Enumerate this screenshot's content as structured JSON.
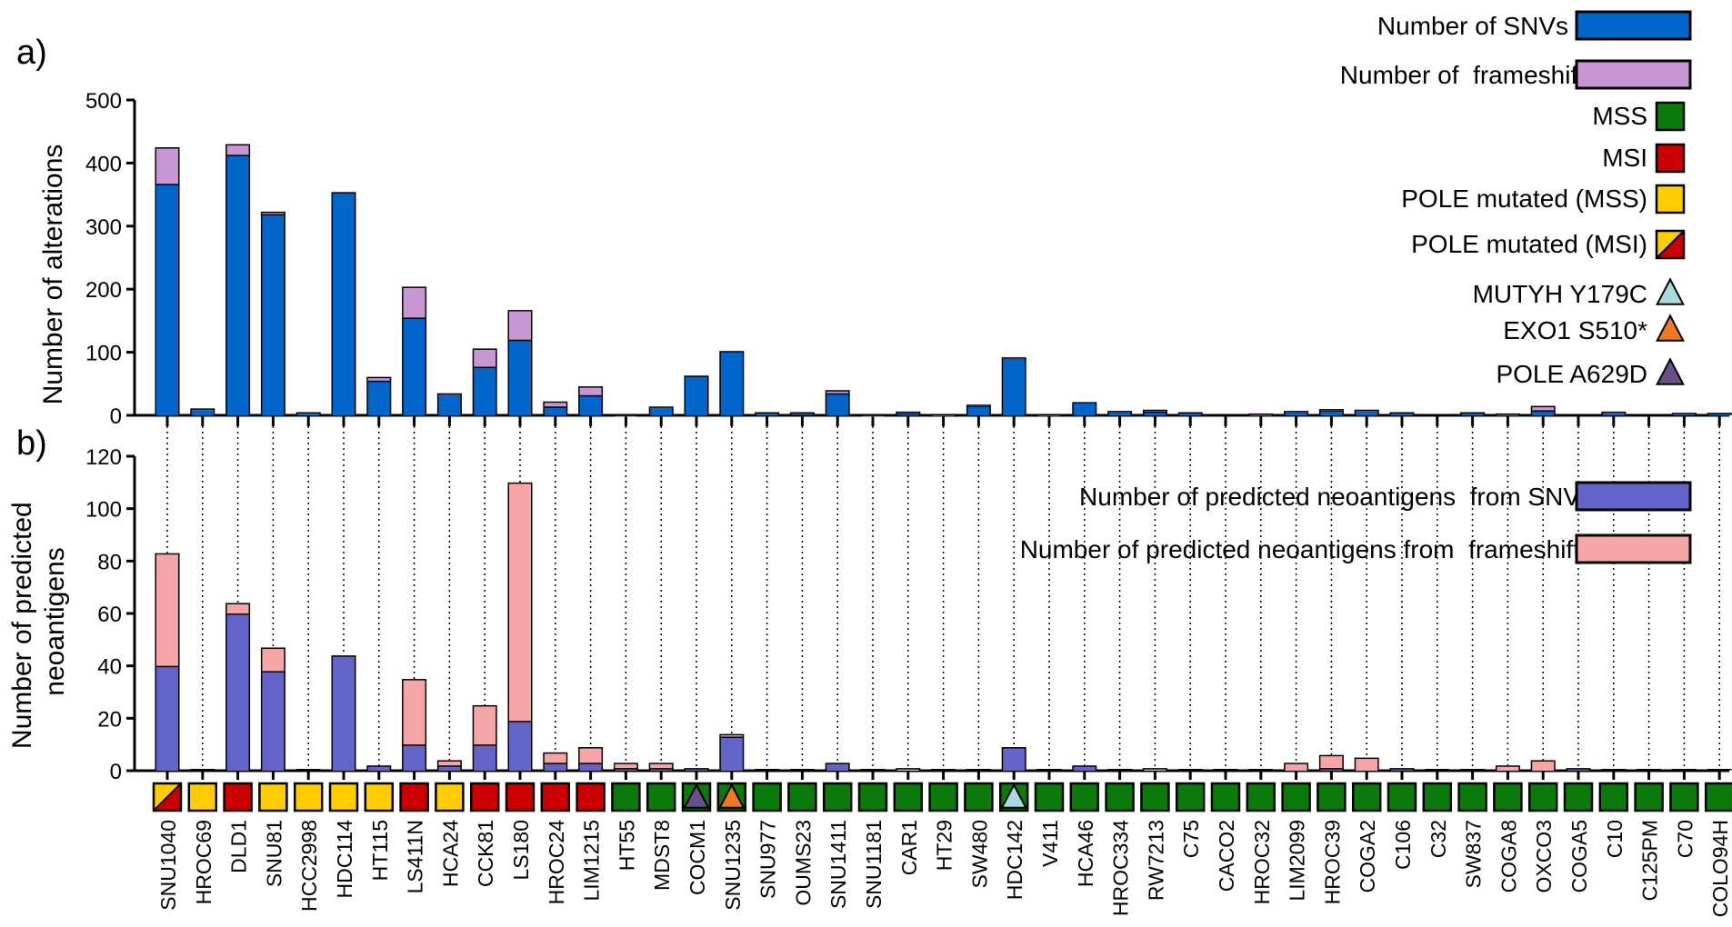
{
  "colors": {
    "snv": "#0066CC",
    "frameshift": "#C896D2",
    "neo_snv": "#6464C8",
    "neo_fs": "#F5A5A5",
    "mss": "#0A7A0A",
    "msi": "#CC0000",
    "pole_mss": "#FFCC00",
    "mutyh": "#A8D8E0",
    "exo1": "#F07820",
    "pole_a629d": "#6B4E8C"
  },
  "chart_data": [
    {
      "type": "bar",
      "stacked": true,
      "panel_label": "a)",
      "ylabel": "Number of alterations",
      "ylim": [
        0,
        500
      ],
      "yticks": [
        0,
        100,
        200,
        300,
        400,
        500
      ],
      "legend_placement": "top-right",
      "categories": [
        "SNU1040",
        "HROC69",
        "DLD1",
        "SNU81",
        "HCC2998",
        "HDC114",
        "HT115",
        "LS411N",
        "HCA24",
        "CCK81",
        "LS180",
        "HROC24",
        "LIM1215",
        "HT55",
        "MDST8",
        "COCM1",
        "SNU1235",
        "SNU977",
        "OUMS23",
        "SNU1411",
        "SNU1181",
        "CAR1",
        "HT29",
        "SW480",
        "HDC142",
        "V411",
        "HCA46",
        "HROC334",
        "RW7213",
        "C75",
        "CACO2",
        "HROC32",
        "LIM2099",
        "HROC39",
        "COGA2",
        "C106",
        "C32",
        "SW837",
        "COGA8",
        "OXCO3",
        "COGA5",
        "C10",
        "C125PM",
        "C70",
        "COLO94H"
      ],
      "series": [
        {
          "name": "Number of SNVs",
          "values": [
            367,
            10,
            413,
            319,
            4,
            354,
            55,
            155,
            34,
            77,
            120,
            14,
            32,
            0,
            13,
            63,
            102,
            5,
            3,
            35,
            0,
            4,
            0,
            15,
            91,
            0,
            21,
            6,
            6,
            5,
            0,
            2,
            6,
            8,
            8,
            5,
            0,
            5,
            2,
            8,
            0,
            5,
            0,
            3,
            4
          ]
        },
        {
          "name": "Number of  frameshifts",
          "values": [
            58,
            1,
            17,
            4,
            1,
            0,
            6,
            49,
            1,
            29,
            47,
            8,
            14,
            1,
            1,
            0,
            0,
            0,
            2,
            5,
            1,
            2,
            2,
            2,
            1,
            2,
            0,
            1,
            3,
            0,
            0,
            1,
            1,
            2,
            1,
            0,
            0,
            0,
            1,
            7,
            0,
            1,
            0,
            1,
            0
          ]
        }
      ]
    },
    {
      "type": "bar",
      "stacked": true,
      "panel_label": "b)",
      "ylabel": "Number of predicted neoantigens",
      "ylim": [
        0,
        120
      ],
      "yticks": [
        0,
        20,
        40,
        60,
        80,
        100,
        120
      ],
      "legend_placement": "top-right",
      "categories": [
        "SNU1040",
        "HROC69",
        "DLD1",
        "SNU81",
        "HCC2998",
        "HDC114",
        "HT115",
        "LS411N",
        "HCA24",
        "CCK81",
        "LS180",
        "HROC24",
        "LIM1215",
        "HT55",
        "MDST8",
        "COCM1",
        "SNU1235",
        "SNU977",
        "OUMS23",
        "SNU1411",
        "SNU1181",
        "CAR1",
        "HT29",
        "SW480",
        "HDC142",
        "V411",
        "HCA46",
        "HROC334",
        "RW7213",
        "C75",
        "CACO2",
        "HROC32",
        "LIM2099",
        "HROC39",
        "COGA2",
        "C106",
        "C32",
        "SW837",
        "COGA8",
        "OXCO3",
        "COGA5",
        "C10",
        "C125PM",
        "C70",
        "COLO94H"
      ],
      "series": [
        {
          "name": "Number of predicted neoantigens  from SNVs",
          "values": [
            40,
            0,
            60,
            38,
            0,
            44,
            2,
            10,
            2,
            10,
            19,
            3,
            3,
            1,
            1,
            1,
            13,
            0,
            0,
            3,
            0,
            0,
            0,
            0,
            9,
            0,
            2,
            0,
            0,
            0,
            0,
            0,
            0,
            1,
            0,
            1,
            0,
            0,
            0,
            0,
            1,
            0,
            0,
            0,
            0
          ]
        },
        {
          "name": "Number of predicted neoantigens from  frameshifts",
          "values": [
            43,
            0,
            4,
            9,
            0,
            0,
            0,
            25,
            2,
            15,
            91,
            4,
            6,
            2,
            2,
            0,
            1,
            0,
            0,
            0,
            0,
            1,
            0,
            0,
            0,
            0,
            0,
            0,
            1,
            0,
            0,
            0,
            3,
            5,
            5,
            0,
            0,
            0,
            2,
            4,
            0,
            0,
            0,
            0,
            0
          ]
        }
      ]
    }
  ],
  "status_legend": [
    {
      "label": "MSS",
      "key": "mss"
    },
    {
      "label": "MSI",
      "key": "msi"
    },
    {
      "label": "POLE mutated (MSS)",
      "key": "pole_mss"
    },
    {
      "label": "POLE mutated (MSI)",
      "key": "pole_msi"
    }
  ],
  "mutation_legend": [
    {
      "label": "MUTYH Y179C",
      "key": "mutyh"
    },
    {
      "label": "EXO1 S510*",
      "key": "exo1"
    },
    {
      "label": "POLE A629D",
      "key": "pole_a629d"
    }
  ],
  "sample_status": [
    "pole_msi",
    "pole_mss",
    "msi",
    "pole_mss",
    "pole_mss",
    "pole_mss",
    "pole_mss",
    "msi",
    "pole_mss",
    "msi",
    "msi",
    "msi",
    "msi",
    "mss",
    "mss",
    "mss",
    "mss",
    "mss",
    "mss",
    "mss",
    "mss",
    "mss",
    "mss",
    "mss",
    "mss",
    "mss",
    "mss",
    "mss",
    "mss",
    "mss",
    "mss",
    "mss",
    "mss",
    "mss",
    "mss",
    "mss",
    "mss",
    "mss",
    "mss",
    "mss",
    "mss",
    "mss",
    "mss",
    "mss",
    "mss"
  ],
  "sample_markers": {
    "COCM1": "pole_a629d",
    "SNU1235": "exo1",
    "HDC142": "mutyh"
  }
}
